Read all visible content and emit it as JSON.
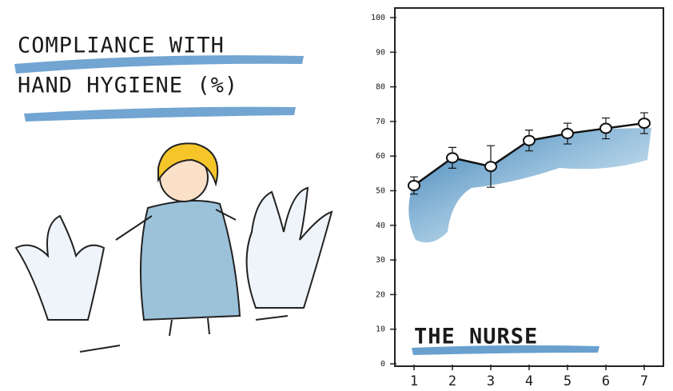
{
  "chart_data": {
    "type": "line",
    "title": [
      "COMPLIANCE WITH",
      "HAND HYGIENE (%)"
    ],
    "annotation": "THE NURSE",
    "x": [
      1,
      2,
      3,
      4,
      5,
      6,
      7
    ],
    "xlim": [
      0.5,
      7.5
    ],
    "xticks": [
      1,
      2,
      3,
      4,
      5,
      6,
      7
    ],
    "ylim": [
      0,
      100
    ],
    "yticks": [
      0,
      10,
      20,
      30,
      40,
      50,
      60,
      70,
      80,
      90,
      100
    ],
    "series": [
      {
        "color": "#111111",
        "values": [
          51.5,
          59.5,
          57,
          64.5,
          66.5,
          68,
          69.5
        ],
        "errors": [
          2.5,
          3,
          6,
          3,
          3,
          3,
          3
        ]
      }
    ]
  }
}
